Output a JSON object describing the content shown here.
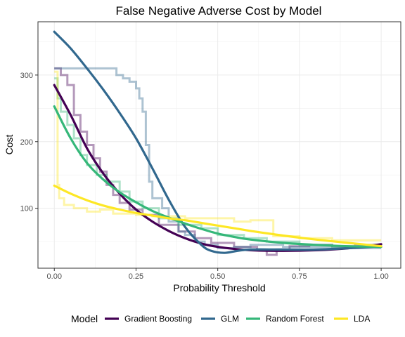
{
  "chart_data": {
    "type": "line",
    "title": "False Negative Adverse Cost by Model",
    "xlabel": "Probability Threshold",
    "ylabel": "Cost",
    "xlim": [
      -0.05,
      1.06
    ],
    "ylim": [
      10,
      380
    ],
    "x_ticks": [
      0.0,
      0.25,
      0.5,
      0.75,
      1.0
    ],
    "x_tick_labels": [
      "0.00",
      "0.25",
      "0.50",
      "0.75",
      "1.00"
    ],
    "y_ticks": [
      100,
      200,
      300
    ],
    "y_tick_labels": [
      "100",
      "200",
      "300"
    ],
    "grid": true,
    "legend_title": "Model",
    "legend_position": "bottom",
    "series": [
      {
        "name": "Gradient Boosting",
        "color": "#440154",
        "raw": [
          [
            0.0,
            310
          ],
          [
            0.02,
            310
          ],
          [
            0.02,
            300
          ],
          [
            0.04,
            300
          ],
          [
            0.04,
            285
          ],
          [
            0.06,
            285
          ],
          [
            0.06,
            240
          ],
          [
            0.08,
            240
          ],
          [
            0.08,
            215
          ],
          [
            0.1,
            215
          ],
          [
            0.1,
            195
          ],
          [
            0.12,
            195
          ],
          [
            0.12,
            175
          ],
          [
            0.14,
            175
          ],
          [
            0.14,
            155
          ],
          [
            0.16,
            155
          ],
          [
            0.16,
            135
          ],
          [
            0.18,
            135
          ],
          [
            0.18,
            120
          ],
          [
            0.2,
            120
          ],
          [
            0.2,
            108
          ],
          [
            0.23,
            108
          ],
          [
            0.23,
            98
          ],
          [
            0.27,
            98
          ],
          [
            0.27,
            90
          ],
          [
            0.32,
            90
          ],
          [
            0.32,
            75
          ],
          [
            0.38,
            75
          ],
          [
            0.38,
            65
          ],
          [
            0.43,
            65
          ],
          [
            0.43,
            55
          ],
          [
            0.48,
            55
          ],
          [
            0.48,
            48
          ],
          [
            0.55,
            48
          ],
          [
            0.55,
            42
          ],
          [
            0.62,
            42
          ],
          [
            0.62,
            38
          ],
          [
            0.65,
            38
          ],
          [
            0.65,
            30
          ],
          [
            0.68,
            30
          ],
          [
            0.68,
            38
          ],
          [
            0.72,
            38
          ],
          [
            0.72,
            43
          ],
          [
            0.78,
            43
          ],
          [
            0.78,
            45
          ],
          [
            0.85,
            45
          ],
          [
            0.85,
            43
          ],
          [
            0.92,
            43
          ],
          [
            0.92,
            45
          ],
          [
            1.0,
            45
          ]
        ],
        "smooth": [
          [
            0.0,
            285
          ],
          [
            0.05,
            240
          ],
          [
            0.1,
            190
          ],
          [
            0.15,
            152
          ],
          [
            0.2,
            122
          ],
          [
            0.25,
            98
          ],
          [
            0.3,
            80
          ],
          [
            0.35,
            66
          ],
          [
            0.4,
            55
          ],
          [
            0.45,
            47
          ],
          [
            0.5,
            42
          ],
          [
            0.55,
            39
          ],
          [
            0.6,
            37
          ],
          [
            0.7,
            36
          ],
          [
            0.8,
            37
          ],
          [
            0.9,
            40
          ],
          [
            1.0,
            46
          ]
        ]
      },
      {
        "name": "GLM",
        "color": "#31688e",
        "raw": [
          [
            0.0,
            310
          ],
          [
            0.19,
            310
          ],
          [
            0.19,
            300
          ],
          [
            0.21,
            300
          ],
          [
            0.21,
            295
          ],
          [
            0.23,
            295
          ],
          [
            0.23,
            290
          ],
          [
            0.25,
            290
          ],
          [
            0.25,
            280
          ],
          [
            0.26,
            280
          ],
          [
            0.26,
            265
          ],
          [
            0.27,
            265
          ],
          [
            0.27,
            245
          ],
          [
            0.28,
            245
          ],
          [
            0.28,
            195
          ],
          [
            0.29,
            195
          ],
          [
            0.29,
            140
          ],
          [
            0.3,
            140
          ],
          [
            0.3,
            115
          ],
          [
            0.33,
            115
          ],
          [
            0.33,
            100
          ],
          [
            0.35,
            100
          ],
          [
            0.35,
            80
          ],
          [
            0.38,
            80
          ],
          [
            0.38,
            65
          ],
          [
            0.4,
            65
          ],
          [
            0.4,
            60
          ],
          [
            0.43,
            60
          ],
          [
            0.43,
            50
          ],
          [
            0.46,
            50
          ],
          [
            0.46,
            45
          ],
          [
            0.5,
            45
          ],
          [
            0.5,
            40
          ],
          [
            0.55,
            40
          ],
          [
            0.55,
            42
          ],
          [
            0.6,
            42
          ],
          [
            0.6,
            45
          ],
          [
            0.7,
            45
          ],
          [
            0.7,
            42
          ],
          [
            0.85,
            42
          ],
          [
            0.85,
            40
          ],
          [
            1.0,
            40
          ]
        ],
        "smooth": [
          [
            0.0,
            365
          ],
          [
            0.05,
            340
          ],
          [
            0.1,
            310
          ],
          [
            0.15,
            278
          ],
          [
            0.2,
            243
          ],
          [
            0.25,
            205
          ],
          [
            0.3,
            160
          ],
          [
            0.35,
            113
          ],
          [
            0.4,
            72
          ],
          [
            0.45,
            45
          ],
          [
            0.48,
            36
          ],
          [
            0.52,
            33
          ],
          [
            0.56,
            36
          ],
          [
            0.6,
            38
          ],
          [
            0.7,
            38
          ],
          [
            0.8,
            38
          ],
          [
            0.9,
            40
          ],
          [
            1.0,
            43
          ]
        ]
      },
      {
        "name": "Random Forest",
        "color": "#35b779",
        "raw": [
          [
            0.0,
            295
          ],
          [
            0.01,
            295
          ],
          [
            0.01,
            265
          ],
          [
            0.02,
            265
          ],
          [
            0.02,
            245
          ],
          [
            0.04,
            245
          ],
          [
            0.04,
            225
          ],
          [
            0.06,
            225
          ],
          [
            0.06,
            205
          ],
          [
            0.08,
            205
          ],
          [
            0.08,
            180
          ],
          [
            0.1,
            180
          ],
          [
            0.1,
            165
          ],
          [
            0.13,
            165
          ],
          [
            0.13,
            150
          ],
          [
            0.16,
            150
          ],
          [
            0.16,
            140
          ],
          [
            0.2,
            140
          ],
          [
            0.2,
            125
          ],
          [
            0.23,
            125
          ],
          [
            0.23,
            110
          ],
          [
            0.27,
            110
          ],
          [
            0.27,
            100
          ],
          [
            0.32,
            100
          ],
          [
            0.32,
            85
          ],
          [
            0.38,
            85
          ],
          [
            0.38,
            75
          ],
          [
            0.45,
            75
          ],
          [
            0.45,
            70
          ],
          [
            0.5,
            70
          ],
          [
            0.5,
            60
          ],
          [
            0.58,
            60
          ],
          [
            0.58,
            55
          ],
          [
            0.65,
            55
          ],
          [
            0.65,
            50
          ],
          [
            0.75,
            50
          ],
          [
            0.75,
            45
          ],
          [
            0.85,
            45
          ],
          [
            0.85,
            42
          ],
          [
            1.0,
            42
          ]
        ],
        "smooth": [
          [
            0.0,
            253
          ],
          [
            0.05,
            205
          ],
          [
            0.1,
            168
          ],
          [
            0.15,
            143
          ],
          [
            0.2,
            124
          ],
          [
            0.25,
            109
          ],
          [
            0.3,
            96
          ],
          [
            0.35,
            86
          ],
          [
            0.4,
            77
          ],
          [
            0.45,
            69
          ],
          [
            0.5,
            62
          ],
          [
            0.55,
            57
          ],
          [
            0.6,
            53
          ],
          [
            0.7,
            48
          ],
          [
            0.8,
            45
          ],
          [
            0.9,
            43
          ],
          [
            1.0,
            42
          ]
        ]
      },
      {
        "name": "LDA",
        "color": "#fde725",
        "raw": [
          [
            0.0,
            305
          ],
          [
            0.01,
            305
          ],
          [
            0.01,
            135
          ],
          [
            0.015,
            135
          ],
          [
            0.015,
            115
          ],
          [
            0.03,
            115
          ],
          [
            0.03,
            105
          ],
          [
            0.06,
            105
          ],
          [
            0.06,
            100
          ],
          [
            0.1,
            100
          ],
          [
            0.1,
            95
          ],
          [
            0.14,
            95
          ],
          [
            0.14,
            98
          ],
          [
            0.18,
            98
          ],
          [
            0.18,
            92
          ],
          [
            0.25,
            92
          ],
          [
            0.25,
            90
          ],
          [
            0.3,
            90
          ],
          [
            0.3,
            88
          ],
          [
            0.4,
            88
          ],
          [
            0.4,
            85
          ],
          [
            0.55,
            85
          ],
          [
            0.55,
            80
          ],
          [
            0.6,
            80
          ],
          [
            0.6,
            82
          ],
          [
            0.67,
            82
          ],
          [
            0.67,
            58
          ],
          [
            0.75,
            58
          ],
          [
            0.75,
            55
          ],
          [
            0.85,
            55
          ],
          [
            0.85,
            52
          ],
          [
            1.0,
            52
          ]
        ],
        "smooth": [
          [
            0.0,
            134
          ],
          [
            0.05,
            122
          ],
          [
            0.1,
            112
          ],
          [
            0.15,
            104
          ],
          [
            0.2,
            98
          ],
          [
            0.25,
            93
          ],
          [
            0.3,
            89
          ],
          [
            0.35,
            85
          ],
          [
            0.4,
            82
          ],
          [
            0.45,
            78
          ],
          [
            0.5,
            74
          ],
          [
            0.55,
            70
          ],
          [
            0.6,
            66
          ],
          [
            0.7,
            59
          ],
          [
            0.8,
            53
          ],
          [
            0.9,
            48
          ],
          [
            1.0,
            43
          ]
        ]
      }
    ]
  }
}
